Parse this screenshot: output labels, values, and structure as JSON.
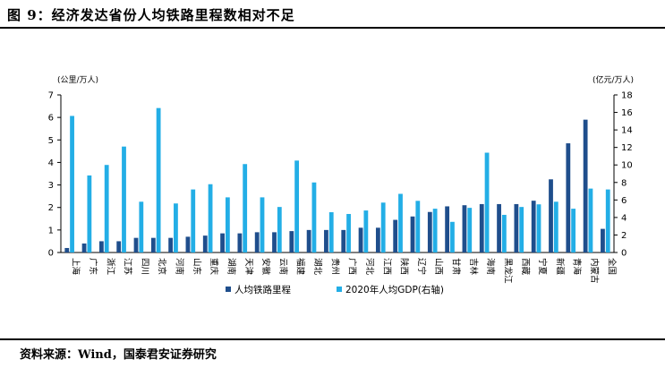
{
  "title": "图 9：经济发达省份人均铁路里程数相对不足",
  "source": "资料来源：Wind，国泰君安证券研究",
  "chart_data": {
    "type": "bar",
    "categories": [
      "上海",
      "广东",
      "浙江",
      "江苏",
      "四川",
      "北京",
      "河南",
      "山东",
      "重庆",
      "湖南",
      "天津",
      "安徽",
      "云南",
      "福建",
      "湖北",
      "贵州",
      "广西",
      "河北",
      "江西",
      "陕西",
      "辽宁",
      "山西",
      "甘肃",
      "吉林",
      "海南",
      "黑龙江",
      "西藏",
      "宁夏",
      "新疆",
      "青海",
      "内蒙古",
      "全国"
    ],
    "series": [
      {
        "name": "人均铁路里程",
        "axis": "left",
        "color": "#1f4e8c",
        "values": [
          0.2,
          0.4,
          0.5,
          0.5,
          0.65,
          0.65,
          0.65,
          0.7,
          0.75,
          0.85,
          0.85,
          0.9,
          0.9,
          0.95,
          1.0,
          1.0,
          1.0,
          1.1,
          1.1,
          1.45,
          1.6,
          1.8,
          2.05,
          2.1,
          2.15,
          2.15,
          2.15,
          2.3,
          3.25,
          4.85,
          5.9,
          1.05
        ]
      },
      {
        "name": "2020年人均GDP(右轴)",
        "axis": "right",
        "color": "#23aee6",
        "values": [
          15.6,
          8.8,
          10.0,
          12.1,
          5.8,
          16.5,
          5.6,
          7.2,
          7.8,
          6.3,
          10.1,
          6.3,
          5.2,
          10.5,
          8.0,
          4.6,
          4.4,
          4.8,
          5.7,
          6.7,
          5.9,
          5.0,
          3.5,
          5.1,
          11.4,
          4.3,
          5.2,
          5.5,
          5.8,
          5.0,
          7.3,
          7.2
        ]
      }
    ],
    "left_axis": {
      "unit_label": "(公里/万人)",
      "ticks": [
        "0",
        "1",
        "2",
        "3",
        "4",
        "5",
        "6",
        "7"
      ],
      "ylim": [
        0,
        7
      ]
    },
    "right_axis": {
      "unit_label": "(亿元/万人)",
      "ticks": [
        "0",
        "2",
        "4",
        "6",
        "8",
        "10",
        "12",
        "14",
        "16",
        "18"
      ],
      "ylim": [
        0,
        18
      ]
    },
    "legend": {
      "position": "bottom",
      "items": [
        "人均铁路里程",
        "2020年人均GDP(右轴)"
      ]
    },
    "grid": false
  }
}
